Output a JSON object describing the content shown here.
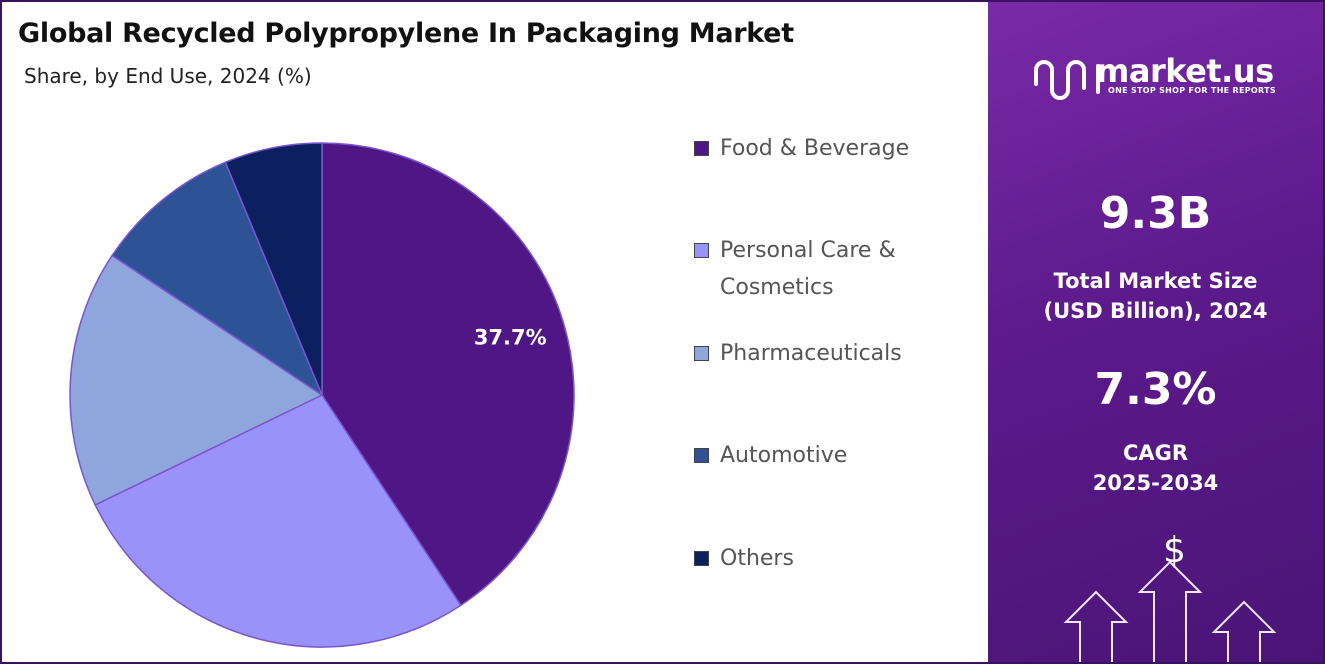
{
  "chart_data": {
    "type": "pie",
    "title": "Global Recycled Polypropylene In Packaging Market",
    "subtitle": "Share, by End Use, 2024 (%)",
    "categories": [
      "Food & Beverage",
      "Personal Care & Cosmetics",
      "Pharmaceuticals",
      "Automotive",
      "Others"
    ],
    "values": [
      37.7,
      25.1,
      15.3,
      8.7,
      5.8
    ],
    "value_labels": [
      "37.7%",
      null,
      null,
      null,
      null
    ],
    "colors": [
      "#4e1785",
      "#9a92fb",
      "#8ea6db",
      "#2d5396",
      "#0c1f5e"
    ],
    "legend": "right"
  },
  "side_panel": {
    "brand": "market.us",
    "tagline": "ONE STOP SHOP FOR THE REPORTS",
    "market_size": "9.3B",
    "market_size_label": [
      "Total Market Size",
      "(USD Billion), 2024"
    ],
    "cagr": "7.3%",
    "cagr_label": [
      "CAGR",
      "2025-2034"
    ],
    "symbol": "$"
  }
}
